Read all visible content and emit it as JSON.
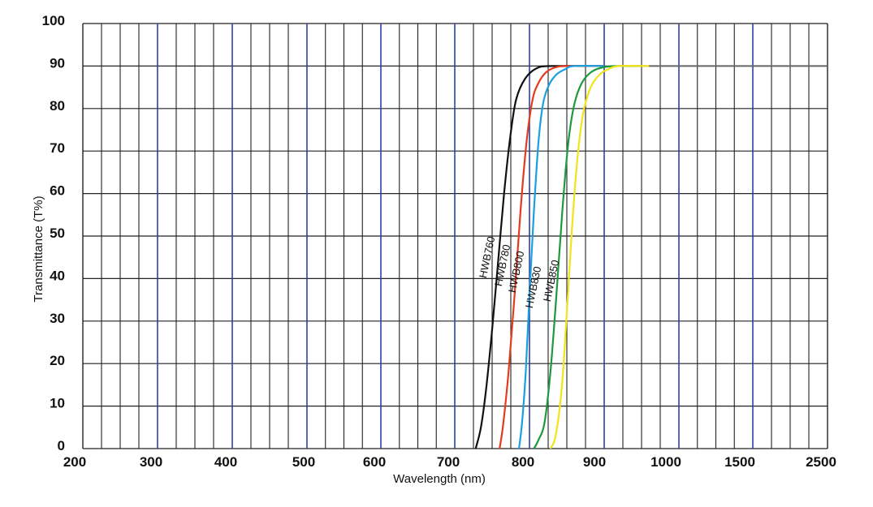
{
  "chart_data": {
    "type": "line",
    "title": "",
    "xlabel": "Wavelength (nm)",
    "ylabel": "Transmittance (T%)",
    "x_tick_labels": [
      "200",
      "300",
      "400",
      "500",
      "600",
      "700",
      "800",
      "900",
      "1000",
      "1500",
      "2500"
    ],
    "y_tick_labels": [
      "0",
      "10",
      "20",
      "30",
      "40",
      "50",
      "60",
      "70",
      "80",
      "90",
      "100"
    ],
    "ylim": [
      0,
      100
    ],
    "grid": true,
    "legend": "none (series labeled along curves)",
    "series": [
      {
        "name": "HWB760",
        "color": "#111111",
        "points": [
          [
            728,
            0
          ],
          [
            735,
            5
          ],
          [
            742,
            14
          ],
          [
            750,
            28
          ],
          [
            758,
            44
          ],
          [
            766,
            60
          ],
          [
            774,
            73
          ],
          [
            782,
            82
          ],
          [
            794,
            87
          ],
          [
            810,
            89.5
          ],
          [
            830,
            90
          ],
          [
            900,
            90
          ]
        ]
      },
      {
        "name": "HWB780",
        "color": "#e53a1e",
        "points": [
          [
            760,
            0
          ],
          [
            765,
            6
          ],
          [
            772,
            18
          ],
          [
            780,
            36
          ],
          [
            788,
            56
          ],
          [
            796,
            72
          ],
          [
            804,
            82
          ],
          [
            812,
            86
          ],
          [
            822,
            88.5
          ],
          [
            835,
            89.7
          ],
          [
            850,
            90
          ],
          [
            900,
            90
          ]
        ]
      },
      {
        "name": "HWB800",
        "color": "#1aa0e0",
        "points": [
          [
            786,
            0
          ],
          [
            790,
            6
          ],
          [
            795,
            18
          ],
          [
            800,
            36
          ],
          [
            806,
            56
          ],
          [
            812,
            72
          ],
          [
            818,
            81
          ],
          [
            826,
            85.5
          ],
          [
            836,
            88
          ],
          [
            848,
            89.3
          ],
          [
            860,
            90
          ],
          [
            900,
            90
          ]
        ]
      },
      {
        "name": "HWB830",
        "color": "#1e9a3c",
        "points": [
          [
            806,
            0
          ],
          [
            812,
            2
          ],
          [
            820,
            6
          ],
          [
            828,
            18
          ],
          [
            836,
            36
          ],
          [
            844,
            56
          ],
          [
            852,
            72
          ],
          [
            860,
            81
          ],
          [
            870,
            86
          ],
          [
            882,
            88.5
          ],
          [
            896,
            89.6
          ],
          [
            915,
            90
          ],
          [
            950,
            90
          ]
        ]
      },
      {
        "name": "HWB850",
        "color": "#f2e31a",
        "points": [
          [
            828,
            0
          ],
          [
            835,
            3
          ],
          [
            843,
            14
          ],
          [
            850,
            32
          ],
          [
            857,
            52
          ],
          [
            864,
            68
          ],
          [
            872,
            79
          ],
          [
            882,
            85
          ],
          [
            894,
            88
          ],
          [
            906,
            89.3
          ],
          [
            920,
            90
          ],
          [
            960,
            90
          ]
        ]
      }
    ],
    "flat_line": {
      "name": "",
      "color": "#666666",
      "from": 930,
      "to": 2500,
      "value": 90
    }
  }
}
